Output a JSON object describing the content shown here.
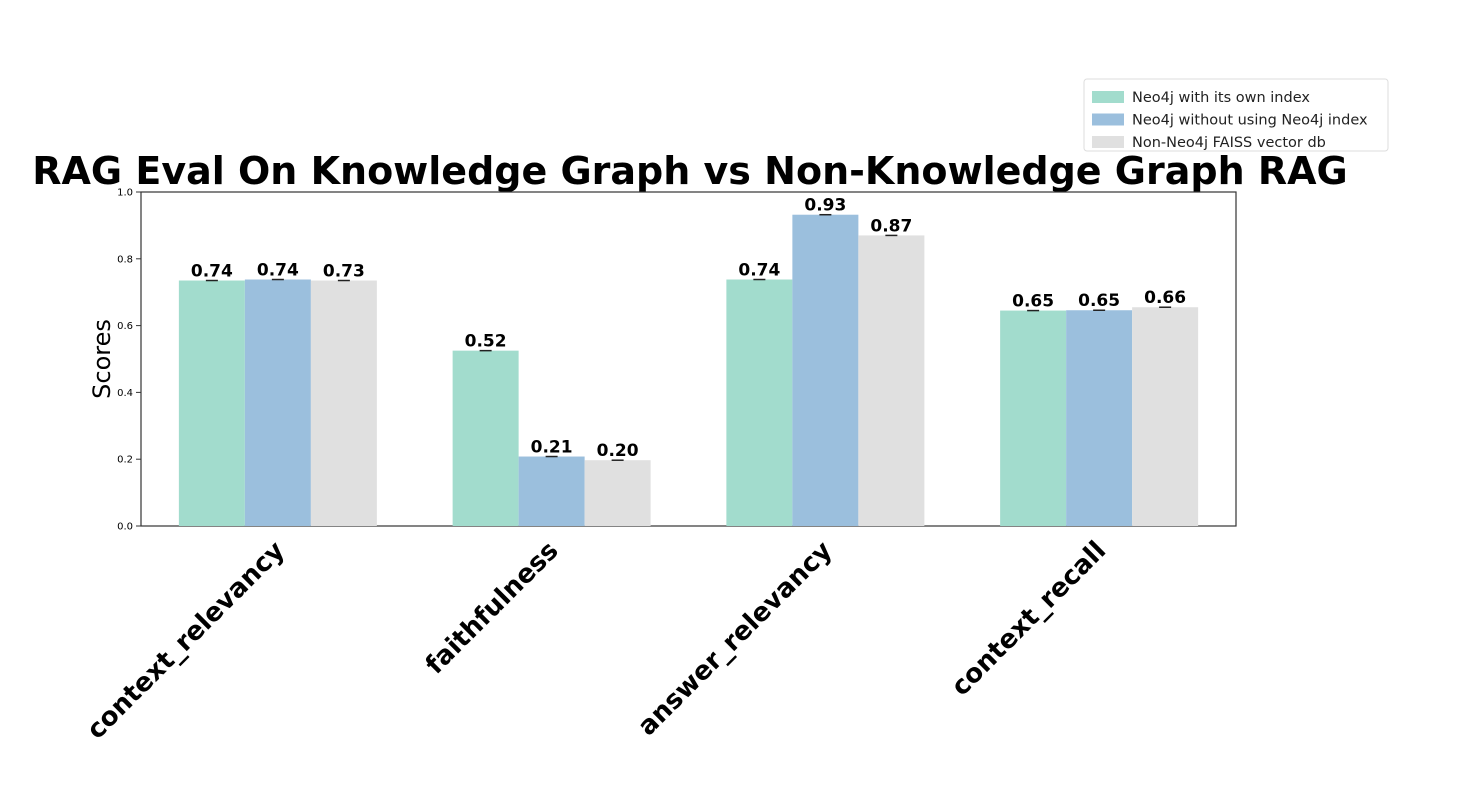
{
  "chart_data": {
    "type": "bar",
    "title": "RAG Eval On Knowledge Graph vs Non-Knowledge Graph RAG",
    "xlabel": "",
    "ylabel": "Scores",
    "ylim": [
      0,
      1.0
    ],
    "yticks": [
      "0.0",
      "0.2",
      "0.4",
      "0.6",
      "0.8",
      "1.0"
    ],
    "categories": [
      "context_relevancy",
      "faithfulness",
      "answer_relevancy",
      "context_recall"
    ],
    "series": [
      {
        "name": "Neo4j with its own index",
        "color": "#a2dccd",
        "values": [
          0.735,
          0.525,
          0.738,
          0.645
        ],
        "labels": [
          "0.74",
          "0.52",
          "0.74",
          "0.65"
        ]
      },
      {
        "name": "Neo4j without using Neo4j index",
        "color": "#9bbfdd",
        "values": [
          0.738,
          0.208,
          0.932,
          0.646
        ],
        "labels": [
          "0.74",
          "0.21",
          "0.93",
          "0.65"
        ]
      },
      {
        "name": "Non-Neo4j FAISS vector db",
        "color": "#e0e0e0",
        "values": [
          0.735,
          0.197,
          0.87,
          0.655
        ],
        "labels": [
          "0.73",
          "0.20",
          "0.87",
          "0.66"
        ]
      }
    ],
    "legend_position": "top-right",
    "grid": false
  }
}
